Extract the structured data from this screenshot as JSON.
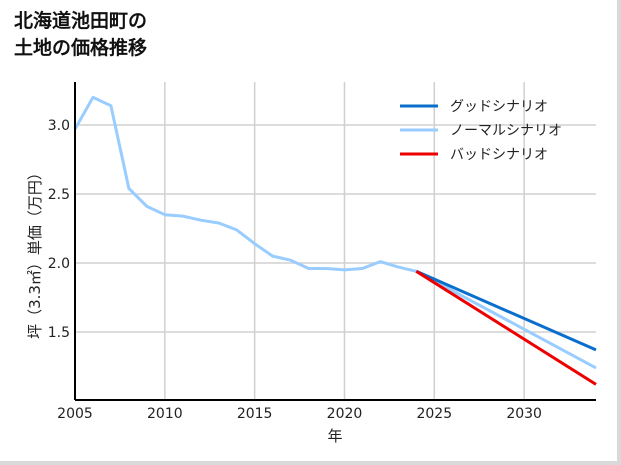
{
  "title_lines": [
    "北海道池田町の",
    "土地の価格推移"
  ],
  "chart_data": {
    "type": "line",
    "title": "北海道池田町の土地の価格推移",
    "xlabel": "年",
    "ylabel": "坪（3.3㎡）単価（万円）",
    "xlim": [
      2005,
      2034
    ],
    "ylim": [
      1.1,
      3.3
    ],
    "grid": true,
    "legend_position": "upper right",
    "x_ticks": [
      2005,
      2010,
      2015,
      2020,
      2025,
      2030
    ],
    "x_tick_labels": [
      "2005",
      "2010",
      "2015",
      "2020",
      "2025",
      "2030"
    ],
    "y_ticks": [
      1.5,
      2.0,
      2.5,
      3.0
    ],
    "y_tick_labels": [
      "1.5",
      "2.0",
      "2.5",
      "3.0"
    ],
    "series": [
      {
        "name": "グッドシナリオ",
        "color": "#0a6fcc",
        "x": [
          2024,
          2034
        ],
        "values": [
          1.94,
          1.37
        ]
      },
      {
        "name": "ノーマルシナリオ",
        "color": "#99ccff",
        "x": [
          2005,
          2006,
          2007,
          2008,
          2009,
          2010,
          2011,
          2012,
          2013,
          2014,
          2015,
          2016,
          2017,
          2018,
          2019,
          2020,
          2021,
          2022,
          2023,
          2024,
          2034
        ],
        "values": [
          2.97,
          3.2,
          3.14,
          2.54,
          2.41,
          2.35,
          2.34,
          2.31,
          2.29,
          2.24,
          2.14,
          2.05,
          2.02,
          1.96,
          1.96,
          1.95,
          1.96,
          2.01,
          1.97,
          1.94,
          1.24
        ]
      },
      {
        "name": "バッドシナリオ",
        "color": "#ee0000",
        "x": [
          2024,
          2034
        ],
        "values": [
          1.94,
          1.12
        ]
      }
    ]
  }
}
